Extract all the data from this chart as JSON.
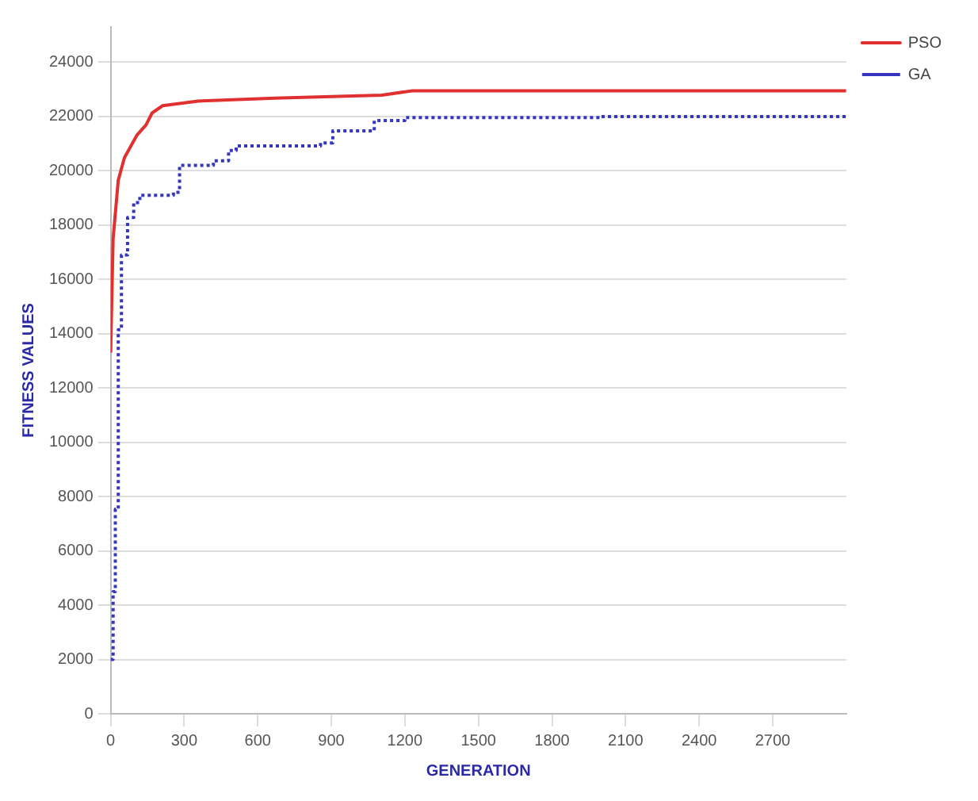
{
  "chart_data": {
    "type": "line",
    "xlabel": "GENERATION",
    "ylabel": "FITNESS VALUES",
    "xlim": [
      0,
      3000
    ],
    "xticks": [
      0,
      300,
      600,
      900,
      1200,
      1500,
      1800,
      2100,
      2400,
      2700
    ],
    "ylim": [
      0,
      25300
    ],
    "yticks": [
      0,
      2000,
      4000,
      6000,
      8000,
      10000,
      12000,
      14000,
      16000,
      18000,
      20000,
      22000,
      24000
    ],
    "grid": "y",
    "legend": "top right",
    "marker": "none",
    "series": [
      {
        "name": "PSO",
        "type": "line",
        "color": "#e03030",
        "line_style": "solid",
        "x": [
          0,
          10,
          31,
          56,
          106,
          144,
          169,
          212,
          356,
          670,
          1106,
          1230,
          1600,
          2000,
          3000
        ],
        "values": [
          13300,
          17500,
          19650,
          20480,
          21300,
          21690,
          22130,
          22400,
          22570,
          22680,
          22790,
          22950,
          22950,
          22950,
          22950
        ]
      },
      {
        "name": "GA",
        "type": "step",
        "color": "#3535c0",
        "line_style": "dotted",
        "x": [
          0,
          10,
          19,
          31,
          44,
          69,
          94,
          119,
          256,
          281,
          419,
          481,
          512,
          856,
          906,
          1075,
          1200,
          2000,
          3000
        ],
        "values": [
          2000,
          4500,
          7540,
          14150,
          16900,
          18280,
          18830,
          19100,
          19210,
          20200,
          20370,
          20750,
          20920,
          21030,
          21470,
          21850,
          21960,
          22000,
          22000
        ]
      }
    ]
  }
}
